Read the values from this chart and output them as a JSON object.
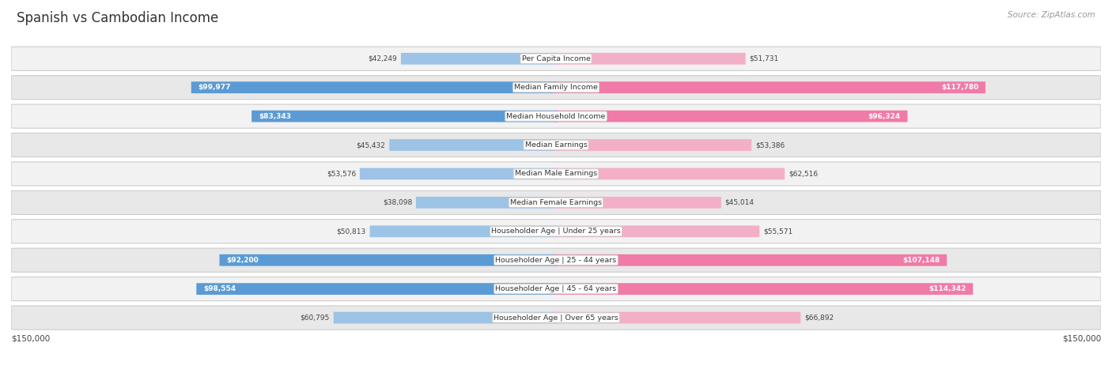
{
  "title": "Spanish vs Cambodian Income",
  "source": "Source: ZipAtlas.com",
  "max_value": 150000,
  "categories": [
    "Per Capita Income",
    "Median Family Income",
    "Median Household Income",
    "Median Earnings",
    "Median Male Earnings",
    "Median Female Earnings",
    "Householder Age | Under 25 years",
    "Householder Age | 25 - 44 years",
    "Householder Age | 45 - 64 years",
    "Householder Age | Over 65 years"
  ],
  "spanish_values": [
    42249,
    99977,
    83343,
    45432,
    53576,
    38098,
    50813,
    92200,
    98554,
    60795
  ],
  "cambodian_values": [
    51731,
    117780,
    96324,
    53386,
    62516,
    45014,
    55571,
    107148,
    114342,
    66892
  ],
  "spanish_labels": [
    "$42,249",
    "$99,977",
    "$83,343",
    "$45,432",
    "$53,576",
    "$38,098",
    "$50,813",
    "$92,200",
    "$98,554",
    "$60,795"
  ],
  "cambodian_labels": [
    "$51,731",
    "$117,780",
    "$96,324",
    "$53,386",
    "$62,516",
    "$45,014",
    "$55,571",
    "$107,148",
    "$114,342",
    "$66,892"
  ],
  "spanish_color_strong": "#5b9bd5",
  "spanish_color_light": "#9dc3e6",
  "cambodian_color_strong": "#f07aa8",
  "cambodian_color_light": "#f4afc8",
  "row_bg_even": "#f2f2f2",
  "row_bg_odd": "#e8e8e8",
  "strong_threshold": 75000,
  "title_color": "#333333",
  "source_color": "#999999",
  "label_dark_color": "#444444",
  "label_light_color": "#ffffff"
}
